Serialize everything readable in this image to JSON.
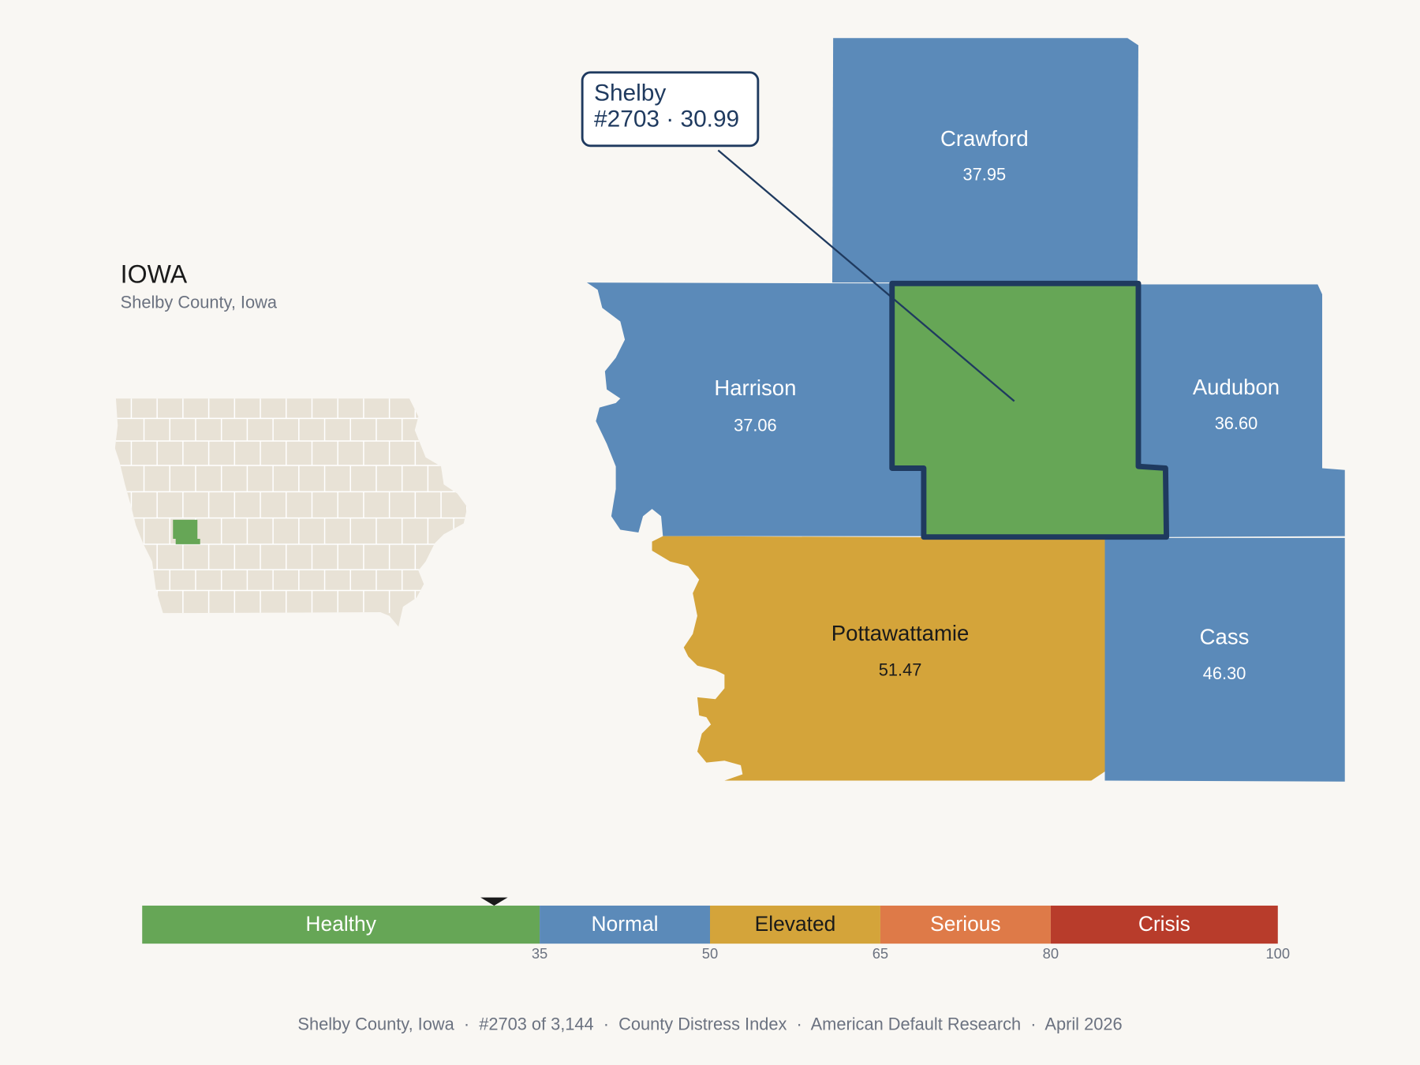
{
  "header": {
    "title": "IOWA",
    "subtitle": "Shelby County, Iowa"
  },
  "callout": {
    "name": "Shelby",
    "detail": "#2703 · 30.99"
  },
  "counties": [
    {
      "name": "Crawford",
      "score": "37.95",
      "color": "#5b8ab9"
    },
    {
      "name": "Harrison",
      "score": "37.06",
      "color": "#5b8ab9"
    },
    {
      "name": "Audubon",
      "score": "36.60",
      "color": "#5b8ab9"
    },
    {
      "name": "Pottawattamie",
      "score": "51.47",
      "color": "#d4a43a"
    },
    {
      "name": "Cass",
      "score": "46.30",
      "color": "#5b8ab9"
    }
  ],
  "focus_color": "#66a656",
  "scale": {
    "xlim": [
      0,
      100
    ],
    "ticks": [
      35,
      50,
      65,
      80,
      100
    ],
    "marker": 30.99,
    "bands": [
      {
        "label": "Healthy",
        "color": "#66a656"
      },
      {
        "label": "Normal",
        "color": "#5b8ab9"
      },
      {
        "label": "Elevated",
        "color": "#d4a43a"
      },
      {
        "label": "Serious",
        "color": "#de7a48"
      },
      {
        "label": "Crisis",
        "color": "#b83c2b"
      }
    ]
  },
  "footer": "Shelby County, Iowa  ·  #2703 of 3,144  ·  County Distress Index  ·  American Default Research  ·  April 2026"
}
